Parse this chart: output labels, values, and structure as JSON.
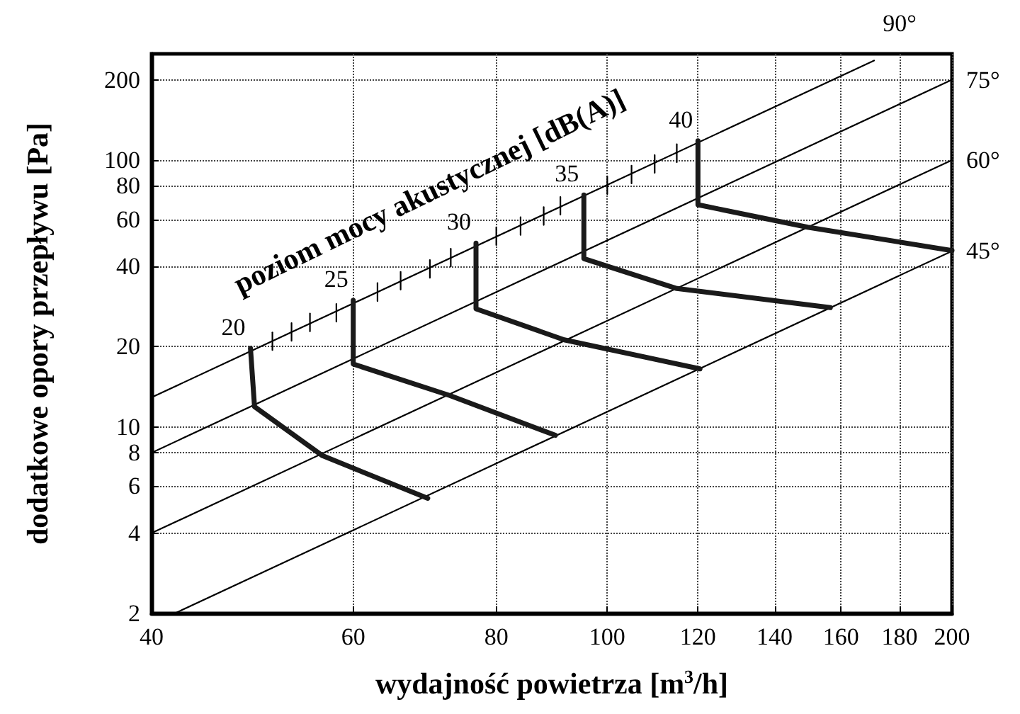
{
  "chart_data": {
    "type": "line",
    "xlabel": "wydajność powietrza [m$^{3}$/h]",
    "ylabel": "dodatkowe opory przepływu [Pa]",
    "log": "xy",
    "grid": true,
    "marker": "none",
    "xlim": [
      40,
      200
    ],
    "xticks": [
      40,
      60,
      80,
      100,
      120,
      140,
      160,
      180,
      200
    ],
    "ylim": [
      2,
      250
    ],
    "yticks": [
      2,
      4,
      6,
      8,
      10,
      20,
      40,
      60,
      80,
      100,
      200
    ],
    "series": [
      {
        "color": "#000000",
        "x": [
          40,
          171
        ],
        "values": [
          12.9,
          236
        ]
      },
      {
        "color": "#000000",
        "x": [
          40,
          200
        ],
        "values": [
          8,
          200
        ]
      },
      {
        "color": "#000000",
        "x": [
          40,
          200
        ],
        "values": [
          4,
          100
        ]
      },
      {
        "color": "#000000",
        "x": [
          41.9,
          200
        ],
        "values": [
          2,
          45.6
        ]
      },
      {
        "color": "#000000",
        "x": [
          51,
          51
        ],
        "values": [
          19.4,
          22.6
        ]
      },
      {
        "color": "#000000",
        "x": [
          53,
          53
        ],
        "values": [
          21,
          24.5
        ]
      },
      {
        "color": "#000000",
        "x": [
          55,
          55
        ],
        "values": [
          22.8,
          26.6
        ]
      },
      {
        "color": "#000000",
        "x": [
          58,
          58
        ],
        "values": [
          24.8,
          28.9
        ]
      },
      {
        "color": "#000000",
        "x": [
          63,
          63
        ],
        "values": [
          29.6,
          34.6
        ]
      },
      {
        "color": "#000000",
        "x": [
          66,
          66
        ],
        "values": [
          32.7,
          38.1
        ]
      },
      {
        "color": "#000000",
        "x": [
          70,
          70
        ],
        "values": [
          36.2,
          42.2
        ]
      },
      {
        "color": "#000000",
        "x": [
          73,
          73
        ],
        "values": [
          39.9,
          46.5
        ]
      },
      {
        "color": "#000000",
        "x": [
          80,
          80
        ],
        "values": [
          48,
          56
        ]
      },
      {
        "color": "#000000",
        "x": [
          84,
          84
        ],
        "values": [
          52.4,
          61.1
        ]
      },
      {
        "color": "#000000",
        "x": [
          88,
          88
        ],
        "values": [
          57.1,
          66.6
        ]
      },
      {
        "color": "#000000",
        "x": [
          91,
          91
        ],
        "values": [
          62.4,
          72.7
        ]
      },
      {
        "color": "#000000",
        "x": [
          100,
          100
        ],
        "values": [
          74.5,
          86.9
        ]
      },
      {
        "color": "#000000",
        "x": [
          105,
          105
        ],
        "values": [
          81.7,
          95.3
        ]
      },
      {
        "color": "#000000",
        "x": [
          110,
          110
        ],
        "values": [
          89.5,
          104.4
        ]
      },
      {
        "color": "#000000",
        "x": [
          115,
          115
        ],
        "values": [
          98.2,
          114.6
        ]
      },
      {
        "color": "#1a1a1a",
        "x": [
          48.8,
          49.2,
          56.4,
          69.7
        ],
        "values": [
          19.7,
          11.9,
          7.8,
          5.4
        ]
      },
      {
        "color": "#1a1a1a",
        "x": [
          60,
          60,
          72.9,
          90.1
        ],
        "values": [
          29.8,
          17.2,
          13.1,
          9.3
        ]
      },
      {
        "color": "#1a1a1a",
        "x": [
          76.8,
          76.8,
          91.7,
          120.5
        ],
        "values": [
          48.8,
          27.7,
          21.2,
          16.5
        ]
      },
      {
        "color": "#1a1a1a",
        "x": [
          95.4,
          95.4,
          115,
          156.6
        ],
        "values": [
          74,
          42.7,
          33,
          28
        ]
      },
      {
        "color": "#1a1a1a",
        "x": [
          120,
          120,
          149.6,
          200
        ],
        "values": [
          118,
          68,
          56,
          45.8
        ]
      }
    ],
    "annotations": [
      "poziom mocy akustycznej [dB(A)]",
      {
        "text": "20",
        "x": 48.8,
        "y": 19.7
      },
      {
        "text": "25",
        "x": 60,
        "y": 29.8
      },
      {
        "text": "30",
        "x": 76.8,
        "y": 48.8
      },
      {
        "text": "35",
        "x": 95.4,
        "y": 74
      },
      {
        "text": "40",
        "x": 120,
        "y": 118
      },
      {
        "text": "90°",
        "x": 171,
        "y": 236
      },
      {
        "text": "75°",
        "x": 200,
        "y": 200
      },
      {
        "text": "60°",
        "x": 200,
        "y": 100
      },
      {
        "text": "45°",
        "x": 200,
        "y": 45.6
      }
    ]
  }
}
